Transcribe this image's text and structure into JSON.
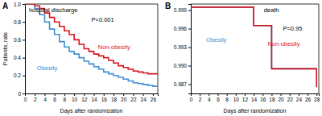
{
  "chart_data": [
    {
      "type": "step",
      "title": "hospital discharge",
      "annotations": [
        "A",
        "P<0.001"
      ],
      "x_label": "Days after randomization",
      "y_label": "Patients, rate",
      "x": [
        0,
        1,
        2,
        3,
        4,
        5,
        6,
        7,
        8,
        9,
        10,
        11,
        12,
        13,
        14,
        15,
        16,
        17,
        18,
        19,
        20,
        21,
        22,
        23,
        24,
        25,
        26,
        27
      ],
      "series": [
        {
          "name": "Obesity",
          "color": "#3d8fd6",
          "values": [
            1.0,
            1.0,
            0.95,
            0.88,
            0.8,
            0.72,
            0.66,
            0.58,
            0.52,
            0.47,
            0.44,
            0.4,
            0.36,
            0.33,
            0.3,
            0.27,
            0.24,
            0.22,
            0.2,
            0.18,
            0.16,
            0.14,
            0.12,
            0.11,
            0.1,
            0.09,
            0.08,
            0.08
          ]
        },
        {
          "name": "Non-obesity",
          "color": "#d8151d",
          "values": [
            1.0,
            1.0,
            0.98,
            0.95,
            0.9,
            0.85,
            0.8,
            0.75,
            0.7,
            0.66,
            0.6,
            0.55,
            0.5,
            0.47,
            0.44,
            0.42,
            0.4,
            0.37,
            0.34,
            0.31,
            0.29,
            0.27,
            0.25,
            0.24,
            0.23,
            0.22,
            0.22,
            0.21
          ]
        }
      ],
      "xlim": [
        0,
        27
      ],
      "xticks": [
        0,
        2,
        4,
        6,
        8,
        10,
        12,
        14,
        16,
        18,
        20,
        22,
        24,
        26
      ],
      "ylim": [
        0,
        1
      ],
      "yticks": [
        0,
        0.2,
        0.4,
        0.6,
        0.8,
        {
          "value": 1,
          "label": "1.0"
        }
      ]
    },
    {
      "type": "step",
      "title": "death",
      "annotations": [
        "B",
        "P=0.95"
      ],
      "x_label": "Days after randomization",
      "x": [
        0,
        14,
        18,
        27,
        28
      ],
      "series": [
        {
          "name": "Obesity",
          "color": "#3d8fd6",
          "values": [
            0.9995,
            0.9965,
            0.9895,
            0.9895,
            0.9895
          ]
        },
        {
          "name": "Non-obesity",
          "color": "#d8151d",
          "values": [
            0.9995,
            0.9965,
            0.9895,
            0.9895,
            0.9865
          ]
        }
      ],
      "xlim": [
        0,
        28.5
      ],
      "xticks": [
        0,
        2,
        4,
        6,
        8,
        10,
        12,
        14,
        16,
        18,
        20,
        22,
        24,
        26,
        28
      ],
      "ylim": [
        0.9855,
        1.0
      ],
      "yticks": [
        0.999,
        0.996,
        0.993,
        {
          "value": 0.99,
          "label": "0.990"
        },
        0.987
      ]
    }
  ]
}
